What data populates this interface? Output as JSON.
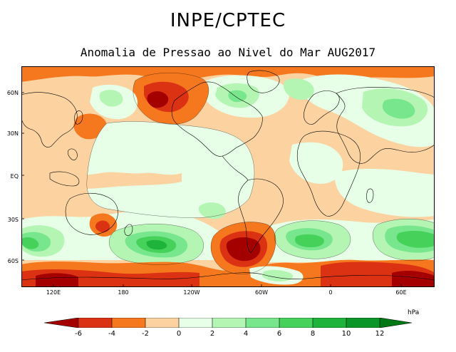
{
  "header": {
    "title": "INPE/CPTEC",
    "subtitle": "Anomalia de Pressao ao Nivel do Mar AUG2017"
  },
  "map": {
    "lat_labels": [
      "60N",
      "30N",
      "EQ",
      "30S",
      "60S"
    ],
    "lon_labels": [
      "120E",
      "180",
      "120W",
      "60W",
      "0",
      "60E"
    ],
    "palette": {
      "m6": "#a50000",
      "m4": "#dc3214",
      "m2": "#f5781e",
      "m0": "#fbd2a0",
      "p0": "#e6ffe6",
      "p2": "#b4f5b4",
      "p4": "#78e68c",
      "p6": "#46d25a",
      "p8": "#1eb43c",
      "p10": "#0a9628",
      "p12": "#007814"
    }
  },
  "colorbar": {
    "unit": "hPa",
    "labels": [
      "-6",
      "-4",
      "-2",
      "0",
      "2",
      "4",
      "6",
      "8",
      "10",
      "12"
    ]
  }
}
